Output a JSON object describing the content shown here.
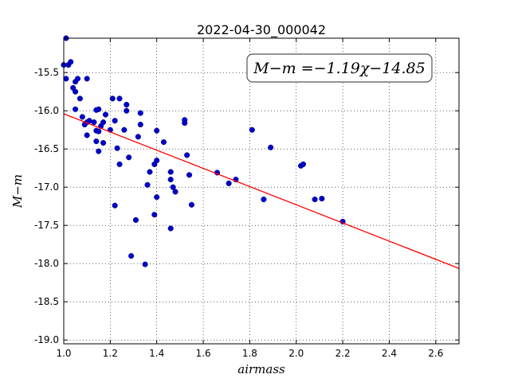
{
  "chart_data": {
    "type": "scatter",
    "title": "2022-04-30_000042",
    "xlabel": "airmass",
    "ylabel": "M−m",
    "xlim": [
      1.0,
      2.7
    ],
    "ylim": [
      -19.05,
      -15.05
    ],
    "x_ticks": [
      "1.0",
      "1.2",
      "1.4",
      "1.6",
      "1.8",
      "2.0",
      "2.2",
      "2.4",
      "2.6"
    ],
    "y_ticks": [
      "-15.5",
      "-16.0",
      "-16.5",
      "-17.0",
      "-17.5",
      "-18.0",
      "-18.5",
      "-19.0"
    ],
    "grid": true,
    "annotation": "M−m =−1.19χ−14.85",
    "fit": {
      "slope": -1.19,
      "intercept": -14.85,
      "color": "#ff0000"
    },
    "point_color": "#0000cc",
    "points": [
      [
        1.01,
        -15.05
      ],
      [
        1.0,
        -15.4
      ],
      [
        1.02,
        -15.4
      ],
      [
        1.03,
        -15.36
      ],
      [
        1.01,
        -15.58
      ],
      [
        1.04,
        -15.7
      ],
      [
        1.05,
        -15.62
      ],
      [
        1.06,
        -15.58
      ],
      [
        1.05,
        -15.75
      ],
      [
        1.07,
        -15.84
      ],
      [
        1.1,
        -15.58
      ],
      [
        1.05,
        -15.98
      ],
      [
        1.08,
        -16.08
      ],
      [
        1.1,
        -16.15
      ],
      [
        1.09,
        -16.18
      ],
      [
        1.11,
        -16.13
      ],
      [
        1.13,
        -16.15
      ],
      [
        1.14,
        -15.99
      ],
      [
        1.15,
        -15.98
      ],
      [
        1.16,
        -16.2
      ],
      [
        1.14,
        -16.26
      ],
      [
        1.17,
        -16.15
      ],
      [
        1.18,
        -16.05
      ],
      [
        1.1,
        -16.32
      ],
      [
        1.15,
        -16.27
      ],
      [
        1.14,
        -16.4
      ],
      [
        1.17,
        -16.42
      ],
      [
        1.15,
        -16.53
      ],
      [
        1.2,
        -16.25
      ],
      [
        1.21,
        -15.84
      ],
      [
        1.24,
        -15.84
      ],
      [
        1.27,
        -15.92
      ],
      [
        1.22,
        -16.13
      ],
      [
        1.26,
        -16.25
      ],
      [
        1.27,
        -16.0
      ],
      [
        1.23,
        -16.49
      ],
      [
        1.24,
        -16.7
      ],
      [
        1.28,
        -16.61
      ],
      [
        1.32,
        -16.34
      ],
      [
        1.33,
        -16.03
      ],
      [
        1.33,
        -16.18
      ],
      [
        1.4,
        -16.26
      ],
      [
        1.43,
        -16.41
      ],
      [
        1.37,
        -16.8
      ],
      [
        1.39,
        -16.7
      ],
      [
        1.4,
        -16.65
      ],
      [
        1.36,
        -16.97
      ],
      [
        1.4,
        -17.13
      ],
      [
        1.22,
        -17.24
      ],
      [
        1.31,
        -17.43
      ],
      [
        1.39,
        -17.36
      ],
      [
        1.46,
        -16.8
      ],
      [
        1.46,
        -16.9
      ],
      [
        1.47,
        -17.0
      ],
      [
        1.48,
        -17.06
      ],
      [
        1.46,
        -17.54
      ],
      [
        1.29,
        -17.9
      ],
      [
        1.35,
        -18.01
      ],
      [
        1.52,
        -16.12
      ],
      [
        1.52,
        -16.16
      ],
      [
        1.53,
        -16.58
      ],
      [
        1.54,
        -16.84
      ],
      [
        1.55,
        -17.23
      ],
      [
        1.66,
        -16.81
      ],
      [
        1.71,
        -16.95
      ],
      [
        1.74,
        -16.9
      ],
      [
        1.81,
        -16.25
      ],
      [
        1.86,
        -17.16
      ],
      [
        1.89,
        -16.48
      ],
      [
        2.02,
        -16.72
      ],
      [
        2.03,
        -16.7
      ],
      [
        2.08,
        -17.16
      ],
      [
        2.11,
        -17.15
      ],
      [
        2.2,
        -17.45
      ]
    ]
  }
}
